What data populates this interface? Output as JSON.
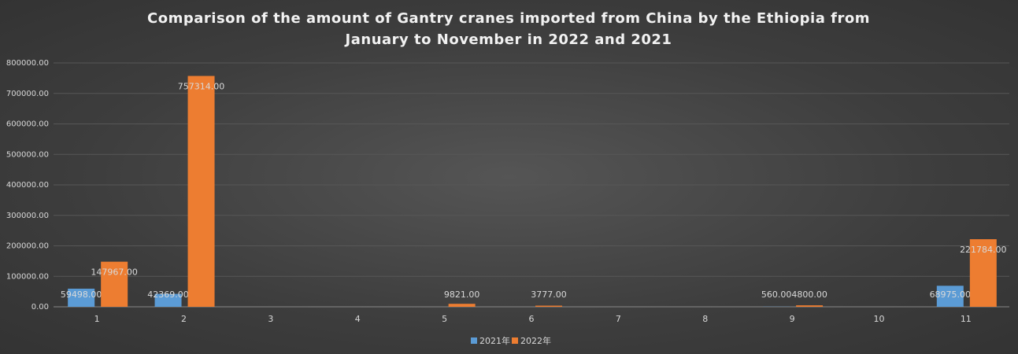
{
  "chart_data": {
    "type": "bar",
    "title": "Comparison of the amount of Gantry cranes imported from China by the Ethiopia from January to November in 2022 and 2021",
    "categories": [
      "1",
      "2",
      "3",
      "4",
      "5",
      "6",
      "7",
      "8",
      "9",
      "10",
      "11"
    ],
    "series": [
      {
        "name": "2021年",
        "color": "#5b9bd5",
        "values": [
          59498,
          42369,
          null,
          null,
          null,
          null,
          null,
          null,
          560,
          null,
          68975
        ],
        "value_labels": [
          "59498.00",
          "42369.00",
          null,
          null,
          null,
          null,
          null,
          null,
          "560.00",
          null,
          "68975.00"
        ]
      },
      {
        "name": "2022年",
        "color": "#ed7d31",
        "values": [
          147967,
          757314,
          null,
          null,
          9821,
          3777,
          null,
          null,
          4800,
          null,
          221784
        ],
        "value_labels": [
          "147967.00",
          "757314.00",
          null,
          null,
          "9821.00",
          "3777.00",
          null,
          null,
          "4800.00",
          null,
          "221784.00"
        ]
      }
    ],
    "ylim": [
      0,
      800000
    ],
    "yticks": [
      {
        "value": 0,
        "label": "0.00"
      },
      {
        "value": 100000,
        "label": "100000.00"
      },
      {
        "value": 200000,
        "label": "200000.00"
      },
      {
        "value": 300000,
        "label": "300000.00"
      },
      {
        "value": 400000,
        "label": "400000.00"
      },
      {
        "value": 500000,
        "label": "500000.00"
      },
      {
        "value": 600000,
        "label": "600000.00"
      },
      {
        "value": 700000,
        "label": "700000.00"
      },
      {
        "value": 800000,
        "label": "800000.00"
      }
    ],
    "grid": true,
    "legend": "bottom"
  }
}
